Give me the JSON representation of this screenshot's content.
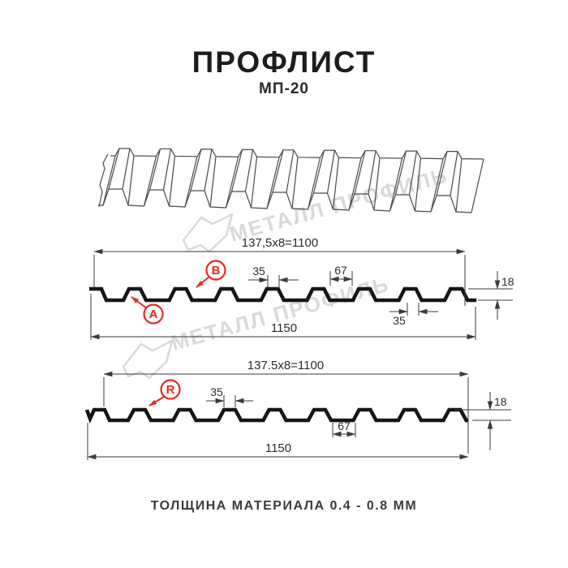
{
  "header": {
    "title": "ПРОФЛИСТ",
    "subtitle": "МП-20"
  },
  "watermark": {
    "text": "МЕТАЛЛ ПРОФИЛЬ",
    "color": "#d9d9d9"
  },
  "profile_top": {
    "module_dim": "137,5x8=1100",
    "rib_top_dim": "35",
    "pan_dim": "67",
    "height_dim": "18",
    "rib_bottom_dim": "35",
    "overall_dim": "1150",
    "label_a": "A",
    "label_b": "B"
  },
  "profile_bottom": {
    "module_dim": "137.5x8=1100",
    "rib_top_dim": "35",
    "pan_dim": "67",
    "height_dim": "18",
    "overall_dim": "1150",
    "label_r": "R"
  },
  "footer": {
    "note": "ТОЛЩИНА МАТЕРИАЛА 0.4 - 0.8 ММ"
  },
  "colors": {
    "red": "#e32b20",
    "line": "#161616",
    "dim": "#3a3a3a",
    "watermark": "#d9d9d9"
  }
}
